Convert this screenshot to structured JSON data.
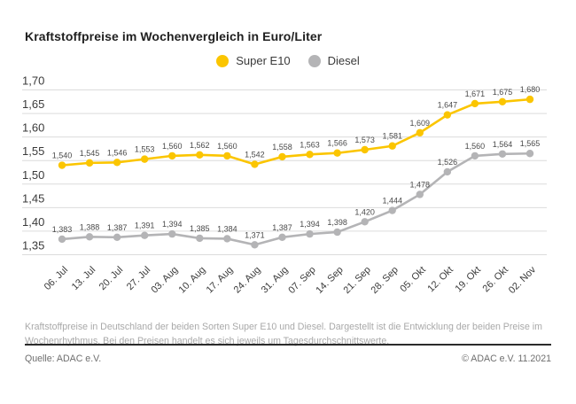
{
  "title": "Kraftstoffpreise im Wochenvergleich in Euro/Liter",
  "chart_data": {
    "type": "line",
    "x": [
      "06. Jul",
      "13. Jul",
      "20. Jul",
      "27. Jul",
      "03. Aug",
      "10. Aug",
      "17. Aug",
      "24. Aug",
      "31. Aug",
      "07. Sep",
      "14. Sep",
      "21. Sep",
      "28. Sep",
      "05. Okt",
      "12. Okt",
      "19. Okt",
      "26. Okt",
      "02. Nov"
    ],
    "series": [
      {
        "name": "Super E10",
        "color": "#FBC500",
        "values": [
          1.54,
          1.545,
          1.546,
          1.553,
          1.56,
          1.562,
          1.56,
          1.542,
          1.558,
          1.563,
          1.566,
          1.573,
          1.581,
          1.609,
          1.647,
          1.671,
          1.675,
          1.68
        ]
      },
      {
        "name": "Diesel",
        "color": "#B4B4B6",
        "values": [
          1.383,
          1.388,
          1.387,
          1.391,
          1.394,
          1.385,
          1.384,
          1.371,
          1.387,
          1.394,
          1.398,
          1.42,
          1.444,
          1.478,
          1.526,
          1.56,
          1.564,
          1.565
        ]
      }
    ],
    "ylim": [
      1.35,
      1.7
    ],
    "yticks": [
      1.7,
      1.65,
      1.6,
      1.55,
      1.5,
      1.45,
      1.4,
      1.35
    ],
    "grid": "horizontal",
    "legend_position": "top-center",
    "value_labels": true,
    "decimal_separator": ",",
    "gridline_color": "#DCDCDC",
    "title": "Kraftstoffpreise im Wochenvergleich in Euro/Liter",
    "xlabel": "",
    "ylabel": "Euro/Liter"
  },
  "footnote": "Kraftstoffpreise in Deutschland der beiden Sorten Super E10 und Diesel. Dargestellt ist die Entwicklung der beiden Preise im Wochenrhythmus. Bei den Preisen handelt es sich jeweils um Tagesdurchschnittswerte.",
  "source": "Quelle: ADAC e.V.",
  "copyright": "© ADAC e.V. 11.2021"
}
